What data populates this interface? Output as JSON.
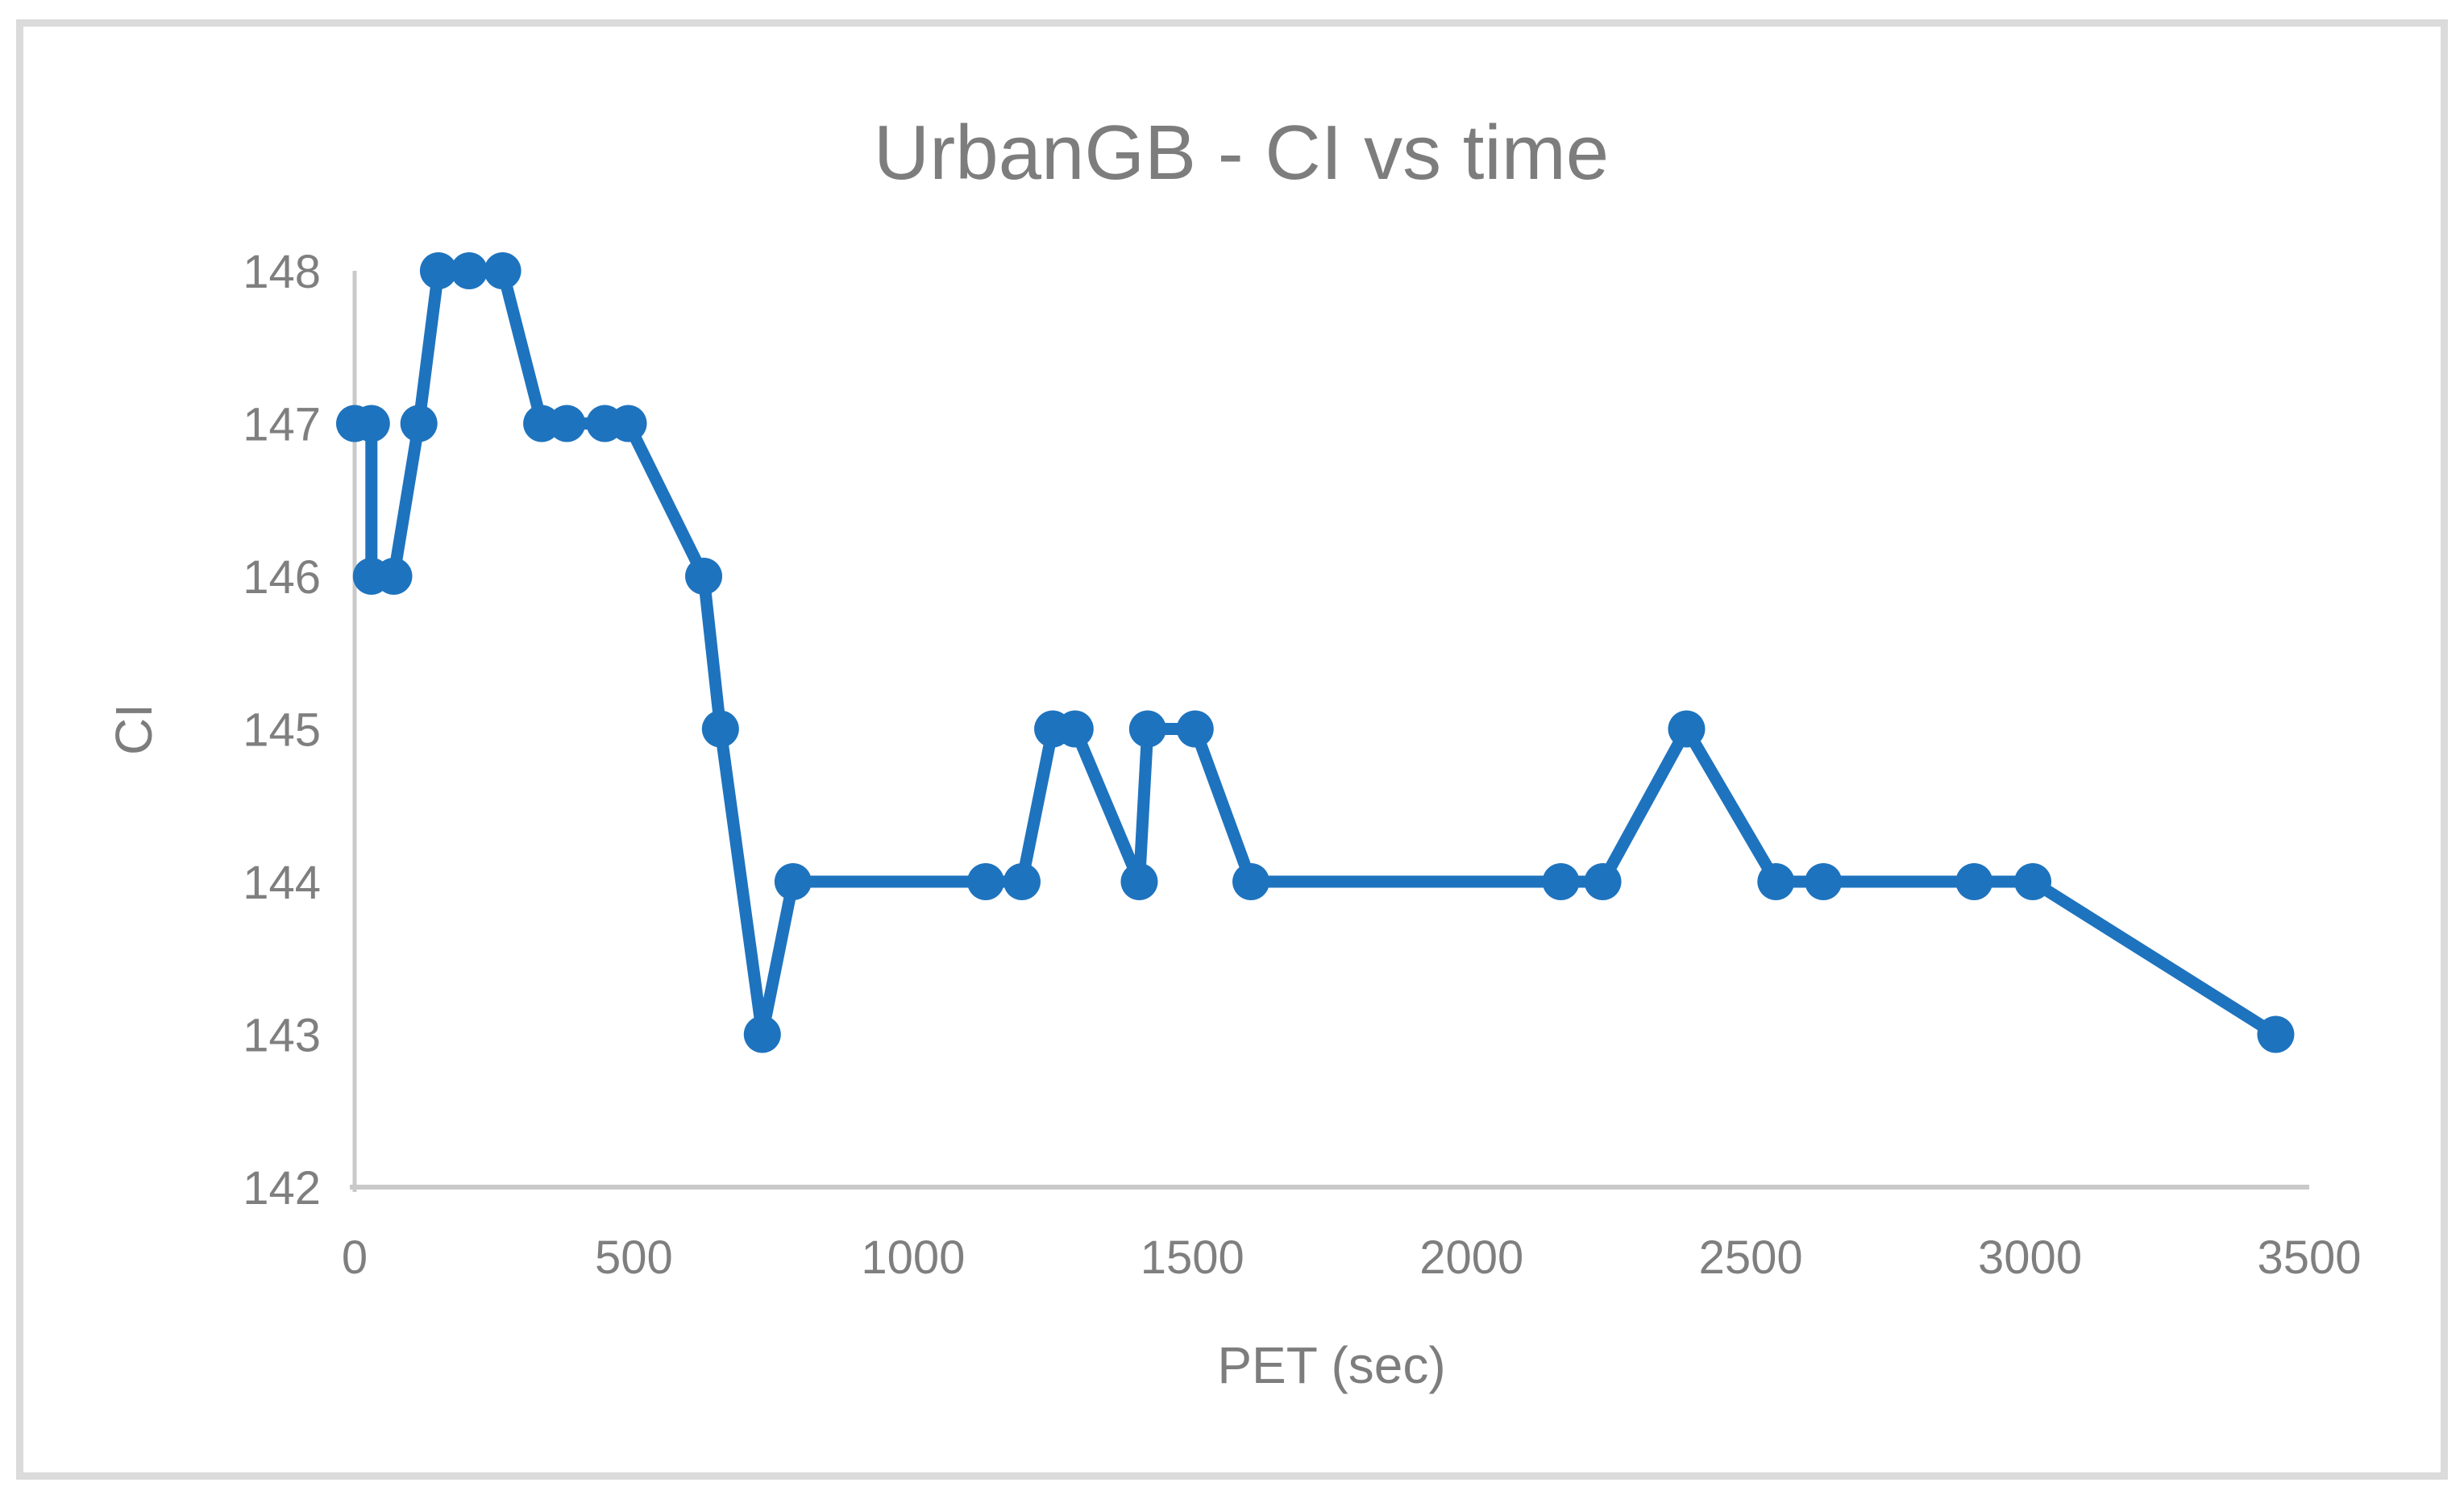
{
  "colors": {
    "series_blue": "#1E73BE",
    "label_gray": "#7F7F7F",
    "axis_line_gray": "#C9C9C9",
    "frame_border_gray": "#DBDBDB",
    "background": "#FFFFFF"
  },
  "chart_data": {
    "type": "line",
    "title": "UrbanGB - CI vs time",
    "xlabel": "PET (sec)",
    "ylabel": "CI",
    "xlim": [
      0,
      3500
    ],
    "ylim": [
      142,
      148
    ],
    "xticks": [
      0,
      500,
      1000,
      1500,
      2000,
      2500,
      3000,
      3500
    ],
    "yticks": [
      142,
      143,
      144,
      145,
      146,
      147,
      148
    ],
    "grid": false,
    "legend": false,
    "marker": "circle",
    "series": [
      {
        "name": "CI",
        "color": "#1E73BE",
        "points": [
          [
            0,
            147
          ],
          [
            30,
            147
          ],
          [
            30,
            146
          ],
          [
            70,
            146
          ],
          [
            115,
            147
          ],
          [
            150,
            148
          ],
          [
            205,
            148
          ],
          [
            265,
            148
          ],
          [
            335,
            147
          ],
          [
            380,
            147
          ],
          [
            448,
            147
          ],
          [
            490,
            147
          ],
          [
            625,
            146
          ],
          [
            655,
            145
          ],
          [
            730,
            143
          ],
          [
            785,
            144
          ],
          [
            1130,
            144
          ],
          [
            1195,
            144
          ],
          [
            1250,
            145
          ],
          [
            1290,
            145
          ],
          [
            1405,
            144
          ],
          [
            1420,
            145
          ],
          [
            1505,
            145
          ],
          [
            1605,
            144
          ],
          [
            2160,
            144
          ],
          [
            2235,
            144
          ],
          [
            2385,
            145
          ],
          [
            2545,
            144
          ],
          [
            2630,
            144
          ],
          [
            2900,
            144
          ],
          [
            3005,
            144
          ],
          [
            3440,
            143
          ]
        ]
      }
    ]
  }
}
